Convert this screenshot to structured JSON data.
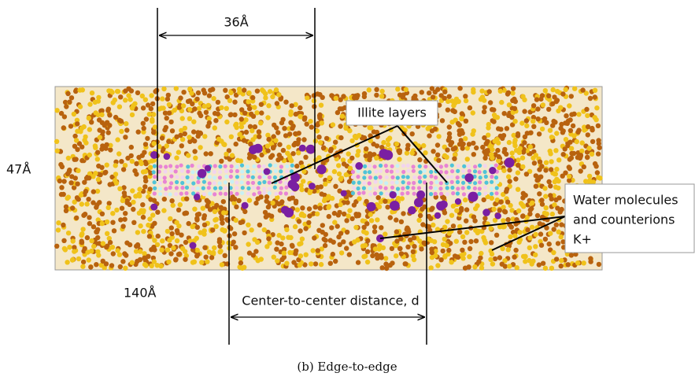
{
  "dimensions": {
    "width_label": "36Å",
    "height_label": "47Å",
    "length_label": "140Å",
    "distance_label": "Center-to-center distance, d"
  },
  "labels": {
    "illite": "Illite layers",
    "water": [
      "Water molecules",
      "and counterions",
      "K+"
    ]
  },
  "caption": "(b) Edge-to-edge"
}
